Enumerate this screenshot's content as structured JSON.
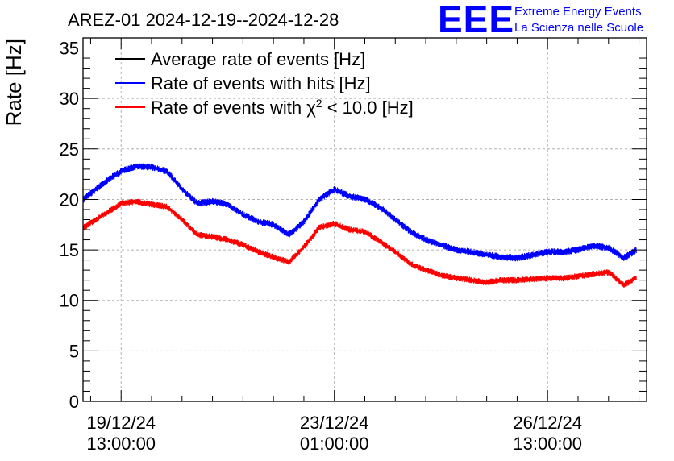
{
  "chart_data": {
    "type": "line",
    "title": "AREZ-01 2024-12-19--2024-12-28",
    "xlabel": "",
    "ylabel": "Rate [Hz]",
    "ylim": [
      0,
      36
    ],
    "yticks": [
      0,
      5,
      10,
      15,
      20,
      25,
      30,
      35
    ],
    "xlim": [
      -15,
      207
    ],
    "x_unit": "hours from 2024-12-19 13:00:00",
    "xticks": [
      {
        "x": 0,
        "line1": "19/12/24",
        "line2": "13:00:00"
      },
      {
        "x": 84,
        "line1": "23/12/24",
        "line2": "01:00:00"
      },
      {
        "x": 168,
        "line1": "26/12/24",
        "line2": "13:00:00"
      }
    ],
    "grid": true,
    "legend_position": "top-left",
    "series": [
      {
        "name": "Average rate of events [Hz]",
        "color": "#000000",
        "x": [],
        "values": []
      },
      {
        "name": "Rate of events with hits [Hz]",
        "color": "#0000ff",
        "noise": 1.1,
        "x": [
          -15,
          -10,
          -5,
          0,
          6,
          12,
          18,
          24,
          30,
          36,
          42,
          48,
          54,
          60,
          66,
          72,
          78,
          84,
          90,
          96,
          102,
          108,
          114,
          120,
          126,
          132,
          138,
          144,
          150,
          156,
          162,
          168,
          174,
          180,
          186,
          192,
          198,
          203
        ],
        "values": [
          20.0,
          21.0,
          22.0,
          22.8,
          23.3,
          23.2,
          22.8,
          21.0,
          19.6,
          19.8,
          19.5,
          18.5,
          17.8,
          17.5,
          16.5,
          17.8,
          20.0,
          21.0,
          20.3,
          20.0,
          19.2,
          18.0,
          16.8,
          16.0,
          15.5,
          15.0,
          14.8,
          14.5,
          14.3,
          14.2,
          14.5,
          14.8,
          14.8,
          15.0,
          15.4,
          15.2,
          14.2,
          15.0
        ]
      },
      {
        "name": "Rate of events with χ² < 10.0 [Hz]",
        "name_parts": [
          "Rate of events with ",
          "χ",
          "2",
          " < 10.0 [Hz]"
        ],
        "color": "#ff0000",
        "noise": 1.0,
        "x": [
          -15,
          -10,
          -5,
          0,
          6,
          12,
          18,
          24,
          30,
          36,
          42,
          48,
          54,
          60,
          66,
          72,
          78,
          84,
          90,
          96,
          102,
          108,
          114,
          120,
          126,
          132,
          138,
          144,
          150,
          156,
          162,
          168,
          174,
          180,
          186,
          192,
          198,
          203
        ],
        "values": [
          17.2,
          18.0,
          18.8,
          19.6,
          19.8,
          19.5,
          19.3,
          18.0,
          16.5,
          16.3,
          16.0,
          15.5,
          14.8,
          14.3,
          13.8,
          15.3,
          17.2,
          17.6,
          17.0,
          16.8,
          15.8,
          14.8,
          13.6,
          13.0,
          12.5,
          12.2,
          12.0,
          11.8,
          12.0,
          12.0,
          12.1,
          12.2,
          12.2,
          12.4,
          12.6,
          12.8,
          11.5,
          12.3
        ]
      }
    ]
  },
  "logo": {
    "mark": "EEE",
    "line1": "Extreme Energy Events",
    "line2": "La Scienza nelle Scuole"
  }
}
